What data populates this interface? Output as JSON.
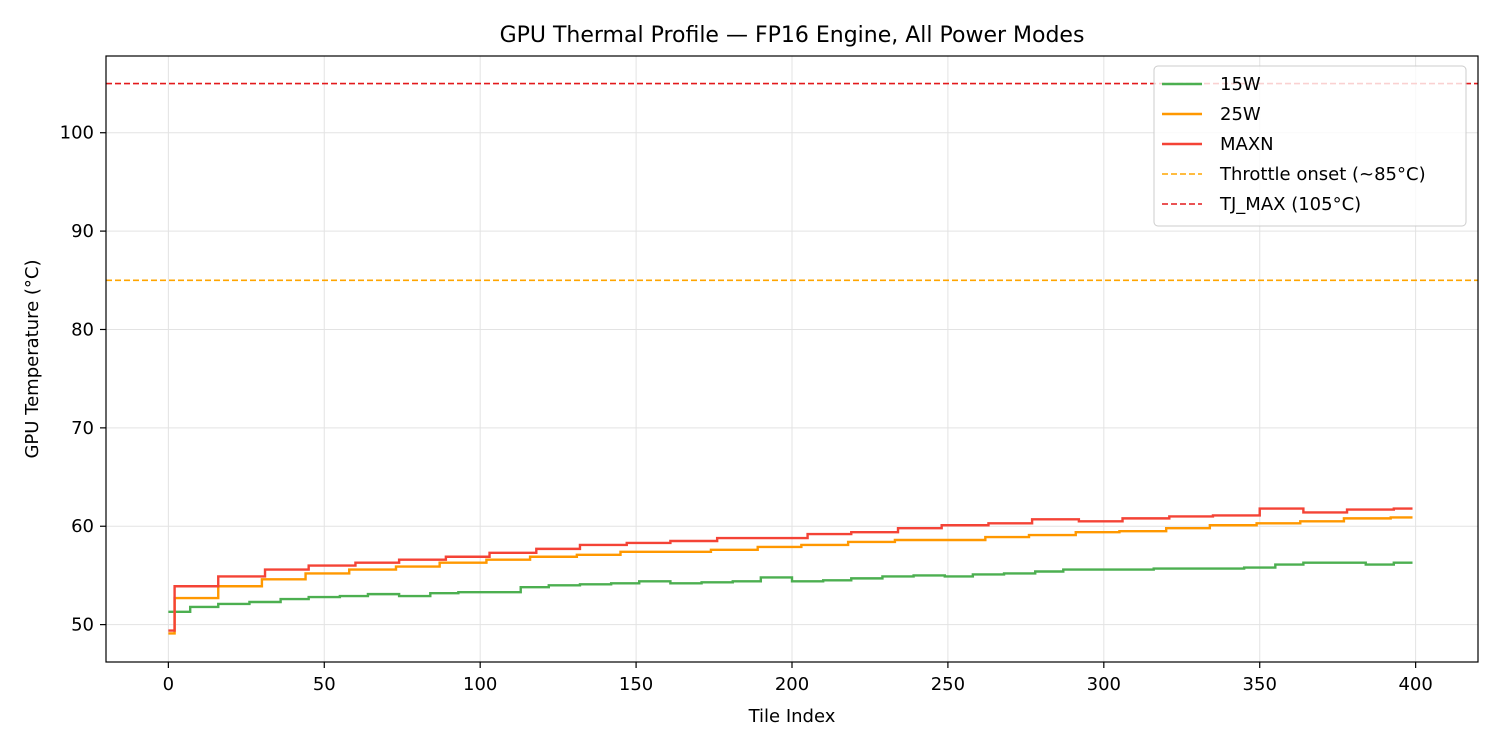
{
  "chart_data": {
    "type": "line",
    "title": "GPU Thermal Profile — FP16 Engine, All Power Modes",
    "xlabel": "Tile Index",
    "ylabel": "GPU Temperature (°C)",
    "xlim": [
      -20,
      420
    ],
    "ylim": [
      46.2,
      107.8
    ],
    "xticks": [
      "0",
      "50",
      "100",
      "150",
      "200",
      "250",
      "300",
      "350",
      "400"
    ],
    "yticks": [
      "50",
      "60",
      "70",
      "80",
      "90",
      "100"
    ],
    "grid": true,
    "legend_position": "top-right",
    "series": [
      {
        "name": "15W",
        "color": "#4caf50",
        "x": [
          0,
          2,
          7,
          16,
          26,
          36,
          45,
          55,
          64,
          74,
          84,
          93,
          103,
          113,
          122,
          132,
          142,
          151,
          161,
          171,
          181,
          190,
          200,
          210,
          219,
          229,
          239,
          249,
          258,
          268,
          278,
          287,
          297,
          306,
          316,
          326,
          335,
          345,
          355,
          364,
          374,
          384,
          393,
          399
        ],
        "y": [
          51.3,
          51.3,
          51.8,
          52.1,
          52.3,
          52.6,
          52.8,
          52.9,
          53.1,
          52.9,
          53.2,
          53.3,
          53.3,
          53.8,
          54.0,
          54.1,
          54.2,
          54.4,
          54.2,
          54.3,
          54.4,
          54.8,
          54.4,
          54.5,
          54.7,
          54.9,
          55.0,
          54.9,
          55.1,
          55.2,
          55.4,
          55.6,
          55.6,
          55.6,
          55.7,
          55.7,
          55.7,
          55.8,
          56.1,
          56.3,
          56.3,
          56.1,
          56.3,
          56.3
        ]
      },
      {
        "name": "25W",
        "color": "#ff9800",
        "x": [
          0,
          1,
          2,
          16,
          30,
          44,
          58,
          73,
          87,
          102,
          116,
          131,
          145,
          160,
          174,
          189,
          203,
          218,
          233,
          247,
          262,
          276,
          291,
          305,
          320,
          334,
          349,
          363,
          377,
          392,
          399
        ],
        "y": [
          49.1,
          49.1,
          52.7,
          53.9,
          54.6,
          55.2,
          55.6,
          55.9,
          56.3,
          56.6,
          56.9,
          57.1,
          57.4,
          57.4,
          57.6,
          57.9,
          58.1,
          58.4,
          58.6,
          58.6,
          58.9,
          59.1,
          59.4,
          59.5,
          59.8,
          60.1,
          60.3,
          60.5,
          60.8,
          60.9,
          60.9
        ]
      },
      {
        "name": "MAXN",
        "color": "#f44336",
        "x": [
          0,
          1,
          2,
          16,
          31,
          45,
          60,
          74,
          89,
          103,
          118,
          132,
          147,
          161,
          176,
          190,
          205,
          219,
          234,
          248,
          263,
          277,
          292,
          306,
          321,
          335,
          350,
          364,
          378,
          393,
          399
        ],
        "y": [
          49.4,
          49.4,
          53.9,
          54.9,
          55.6,
          56.0,
          56.3,
          56.6,
          56.9,
          57.3,
          57.7,
          58.1,
          58.3,
          58.5,
          58.8,
          58.8,
          59.2,
          59.4,
          59.8,
          60.1,
          60.3,
          60.7,
          60.5,
          60.8,
          61.0,
          61.1,
          61.8,
          61.4,
          61.7,
          61.8,
          61.8
        ]
      }
    ],
    "reference_lines": [
      {
        "name": "Throttle onset (~85°C)",
        "y": 85,
        "color": "#ffa500",
        "style": "dashed"
      },
      {
        "name": "TJ_MAX (105°C)",
        "y": 105,
        "color": "#e31a1c",
        "style": "dashed"
      }
    ]
  }
}
